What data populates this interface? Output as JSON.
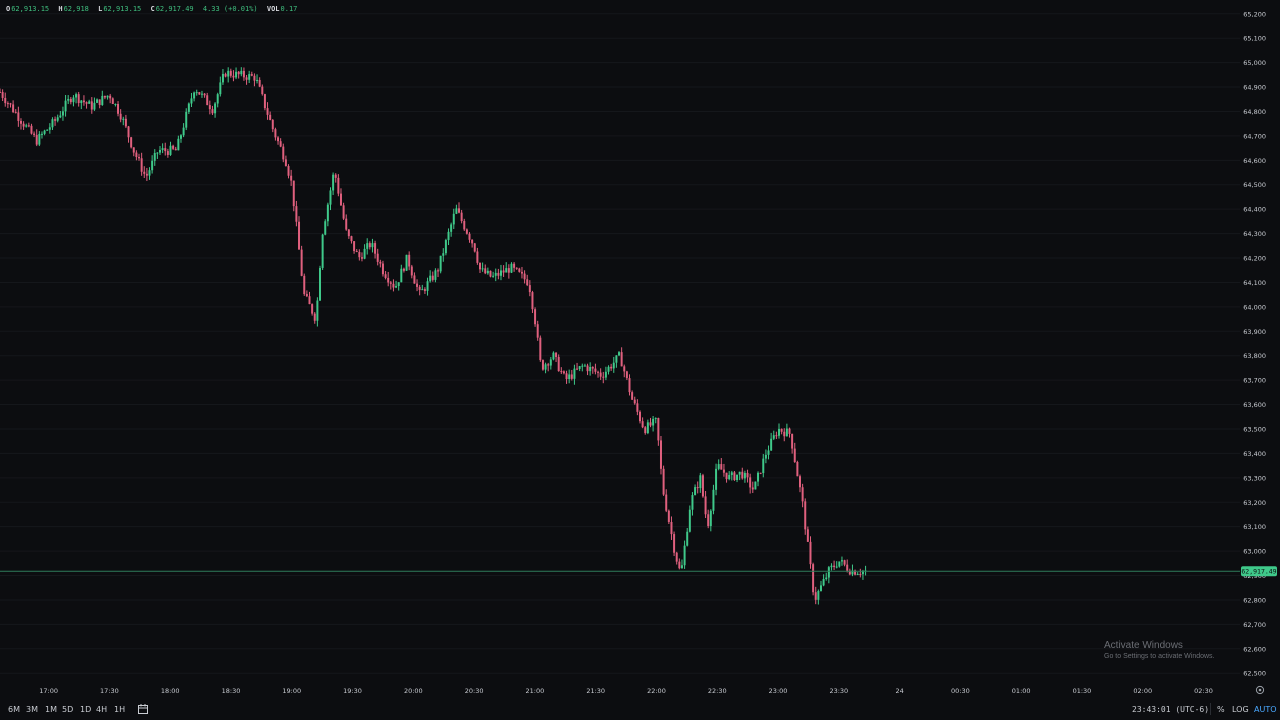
{
  "legend": {
    "open_key": "O",
    "open": "62,913.15",
    "high_key": "H",
    "high": "62,918",
    "low_key": "L",
    "low": "62,913.15",
    "close_key": "C",
    "close": "62,917.49",
    "change": "4.33 (+0.01%)",
    "vol_key": "VOL",
    "vol": "0.17"
  },
  "colors": {
    "up": "#3fc98a",
    "down": "#e0607e",
    "background": "#0c0d10",
    "grid": "#15171b",
    "price_line": "#2e7d5b",
    "price_label_bg": "#3fc98a"
  },
  "timeframes": [
    "6M",
    "3M",
    "1M",
    "5D",
    "1D",
    "4H",
    "1H"
  ],
  "toolbar": {
    "clock": "23:43:01 (UTC-6)",
    "percent": "%",
    "log": "LOG",
    "auto": "AUTO"
  },
  "watermark": {
    "title": "Activate Windows",
    "subtitle": "Go to Settings to activate Windows."
  },
  "icons": {
    "date_range": "calendar-range-icon",
    "settings": "gear-icon"
  },
  "chart_data": {
    "type": "candlestick",
    "x_axis": {
      "ticks": [
        "17:00",
        "17:30",
        "18:00",
        "18:30",
        "19:00",
        "19:30",
        "20:00",
        "20:30",
        "21:00",
        "21:30",
        "22:00",
        "22:30",
        "23:00",
        "23:30",
        "24",
        "00:30",
        "01:00",
        "01:30",
        "02:00",
        "02:30"
      ],
      "tick_hours": [
        17,
        17.5,
        18,
        18.5,
        19,
        19.5,
        20,
        20.5,
        21,
        21.5,
        22,
        22.5,
        23,
        23.5,
        24,
        24.5,
        25,
        25.5,
        26,
        26.5
      ],
      "range_hours": [
        16.6,
        26.8
      ]
    },
    "y_axis": {
      "ticks": [
        65200,
        65100,
        65000,
        64900,
        64800,
        64700,
        64600,
        64500,
        64400,
        64300,
        64200,
        64100,
        64000,
        63900,
        63800,
        63700,
        63600,
        63500,
        63400,
        63300,
        63200,
        63100,
        63000,
        62900,
        62800,
        62700,
        62600,
        62500
      ],
      "tick_labels": [
        "65,200",
        "65,100",
        "65,000",
        "64,900",
        "64,800",
        "64,700",
        "64,600",
        "64,500",
        "64,400",
        "64,300",
        "64,200",
        "64,100",
        "64,000",
        "63,900",
        "63,800",
        "63,700",
        "63,600",
        "63,500",
        "63,400",
        "63,300",
        "63,200",
        "63,100",
        "63,000",
        "62,900",
        "62,800",
        "62,700",
        "62,600",
        "62,500"
      ],
      "range": [
        62460,
        65240
      ]
    },
    "last_price": 62917.49,
    "last_price_label": "62,917.49",
    "path_hours": [
      16.6,
      16.75,
      16.9,
      17.05,
      17.2,
      17.35,
      17.5,
      17.6,
      17.7,
      17.8,
      17.9,
      18.05,
      18.2,
      18.35,
      18.45,
      18.55,
      18.7,
      18.85,
      18.95,
      19.0,
      19.1,
      19.2,
      19.25,
      19.35,
      19.45,
      19.55,
      19.65,
      19.75,
      19.85,
      19.95,
      20.05,
      20.2,
      20.35,
      20.5,
      20.55,
      20.65,
      20.8,
      20.95,
      21.0,
      21.05,
      21.15,
      21.25,
      21.4,
      21.55,
      21.7,
      21.8,
      21.9,
      22.0,
      22.05,
      22.15,
      22.2,
      22.28,
      22.36,
      22.42,
      22.5,
      22.6,
      22.7,
      22.8,
      22.9,
      23.0,
      23.1,
      23.2,
      23.3,
      23.35,
      23.42,
      23.5,
      23.6,
      23.72
    ],
    "path_values": [
      64880,
      64780,
      64680,
      64760,
      64870,
      64820,
      64870,
      64780,
      64640,
      64530,
      64640,
      64640,
      64900,
      64810,
      64960,
      64950,
      64940,
      64720,
      64600,
      64500,
      64050,
      63950,
      64300,
      64560,
      64300,
      64200,
      64260,
      64150,
      64080,
      64200,
      64050,
      64150,
      64400,
      64250,
      64150,
      64120,
      64160,
      64100,
      63950,
      63750,
      63800,
      63700,
      63760,
      63720,
      63800,
      63620,
      63500,
      63530,
      63260,
      63000,
      62900,
      63200,
      63300,
      63100,
      63350,
      63300,
      63320,
      63250,
      63400,
      63500,
      63480,
      63200,
      62800,
      62850,
      62920,
      62960,
      62920,
      62917
    ]
  }
}
